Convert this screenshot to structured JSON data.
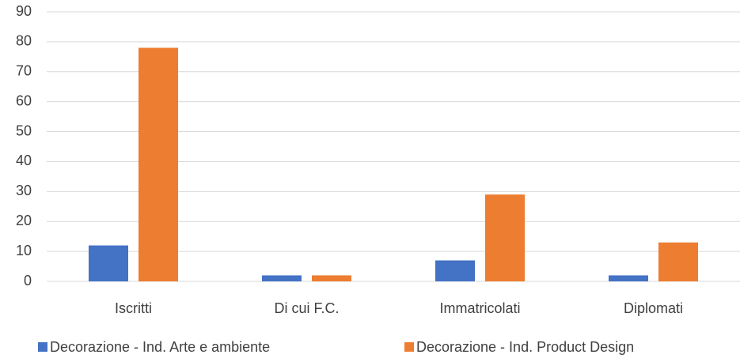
{
  "chart_data": {
    "type": "bar",
    "categories": [
      "Iscritti",
      "Di cui F.C.",
      "Immatricolati",
      "Diplomati"
    ],
    "series": [
      {
        "name": "Decorazione - Ind. Arte e ambiente",
        "color": "#4472c4",
        "values": [
          12,
          2,
          7,
          2
        ]
      },
      {
        "name": "Decorazione - Ind. Product Design",
        "color": "#ed7d31",
        "values": [
          78,
          2,
          29,
          13
        ]
      }
    ],
    "ylim": [
      0,
      90
    ],
    "yticks": [
      0,
      10,
      20,
      30,
      40,
      50,
      60,
      70,
      80,
      90
    ],
    "grid": true,
    "legend": "bottom"
  }
}
